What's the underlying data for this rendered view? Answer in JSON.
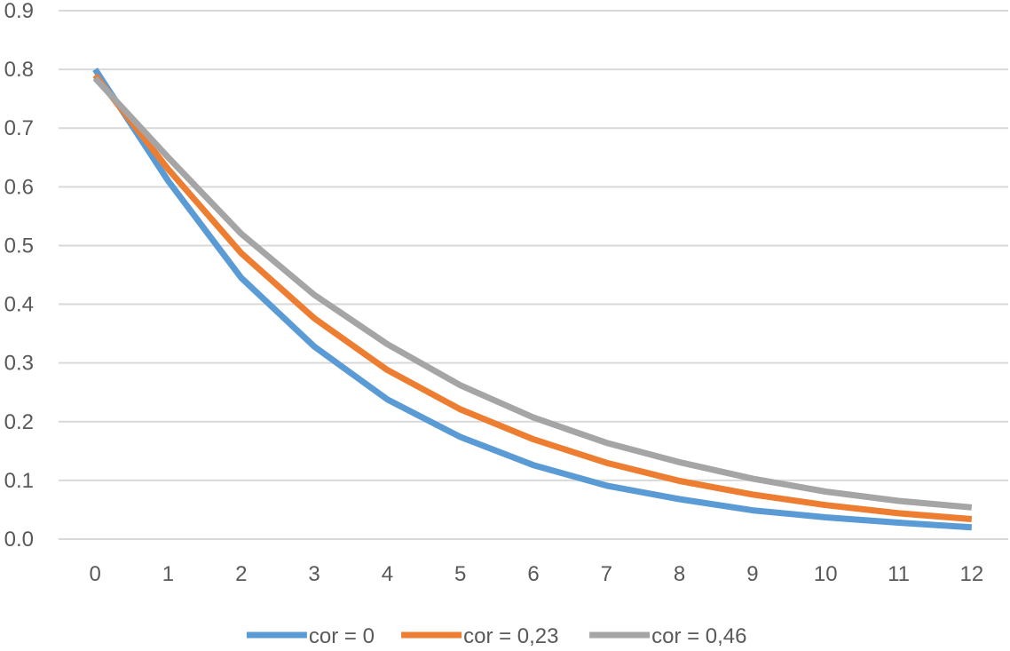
{
  "chart_data": {
    "type": "line",
    "title": "",
    "xlabel": "",
    "ylabel": "",
    "x": [
      0,
      1,
      2,
      3,
      4,
      5,
      6,
      7,
      8,
      9,
      10,
      11,
      12
    ],
    "x_tick_labels": [
      "0",
      "1",
      "2",
      "3",
      "4",
      "5",
      "6",
      "7",
      "8",
      "9",
      "10",
      "11",
      "12"
    ],
    "y_tick_labels": [
      "0.0",
      "0.1",
      "0.2",
      "0.3",
      "0.4",
      "0.5",
      "0.6",
      "0.7",
      "0.8",
      "0.9"
    ],
    "ylim": [
      0,
      0.9
    ],
    "y_ticks": [
      0,
      0.1,
      0.2,
      0.3,
      0.4,
      0.5,
      0.6,
      0.7,
      0.8,
      0.9
    ],
    "grid": "horizontal",
    "legend_position": "bottom",
    "series": [
      {
        "name": "cor = 0",
        "color": "#5b9bd5",
        "values": [
          0.8,
          0.61,
          0.445,
          0.328,
          0.238,
          0.174,
          0.126,
          0.091,
          0.068,
          0.049,
          0.037,
          0.028,
          0.02
        ]
      },
      {
        "name": "cor = 0,23",
        "color": "#ed7d31",
        "values": [
          0.79,
          0.63,
          0.487,
          0.376,
          0.288,
          0.221,
          0.17,
          0.13,
          0.099,
          0.076,
          0.058,
          0.044,
          0.034
        ]
      },
      {
        "name": "cor = 0,46",
        "color": "#a5a5a5",
        "values": [
          0.785,
          0.65,
          0.52,
          0.416,
          0.332,
          0.262,
          0.207,
          0.164,
          0.131,
          0.103,
          0.081,
          0.065,
          0.054
        ]
      }
    ]
  }
}
